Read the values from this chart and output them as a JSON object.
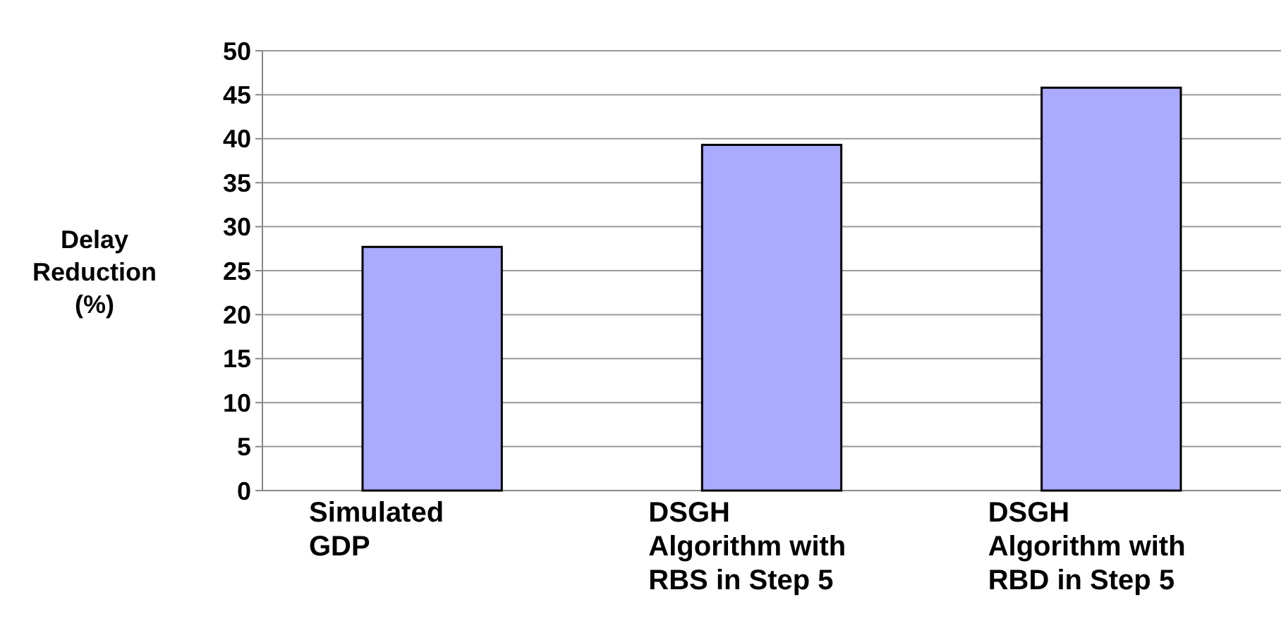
{
  "chart_data": {
    "type": "bar",
    "ylabel": "Delay\nReduction\n(%)",
    "categories": [
      "Simulated\nGDP",
      "DSGH\nAlgorithm with\nRBS in Step 5",
      "DSGH\nAlgorithm with\nRBD in Step 5"
    ],
    "values": [
      27.7,
      39.3,
      45.8
    ],
    "color": "#aaaaff",
    "ylim": [
      0,
      50
    ],
    "yticks": [
      0,
      5,
      10,
      15,
      20,
      25,
      30,
      35,
      40,
      45,
      50
    ],
    "grid": "y"
  }
}
